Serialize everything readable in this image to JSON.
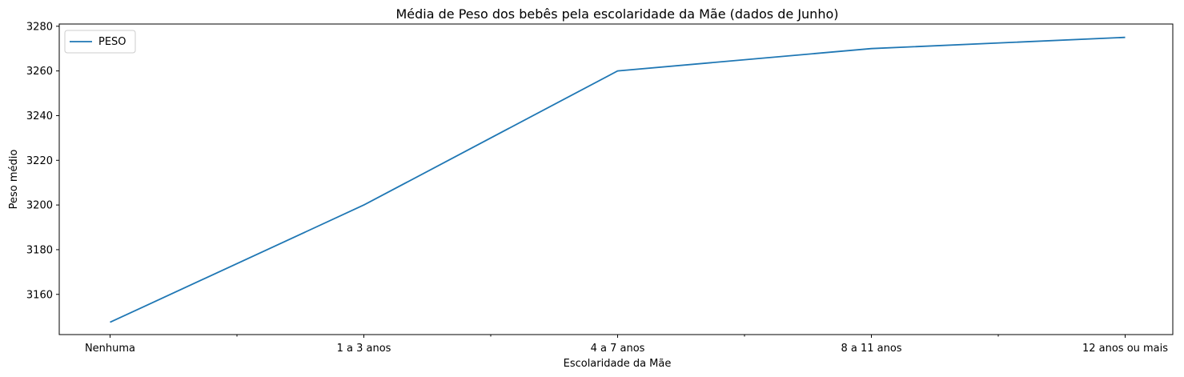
{
  "chart_data": {
    "type": "line",
    "title": "Média de Peso dos bebês pela escolaridade da Mãe (dados de Junho)",
    "xlabel": "Escolaridade da Mãe",
    "ylabel": "Peso médio",
    "categories": [
      "Nenhuma",
      "1 a 3 anos",
      "4 a 7 anos",
      "8 a 11 anos",
      "12 anos ou mais"
    ],
    "series": [
      {
        "name": "PESO",
        "values": [
          3147.5,
          3200,
          3260,
          3270,
          3275
        ],
        "color": "#1f77b4"
      }
    ],
    "yticks": [
      3160,
      3180,
      3200,
      3220,
      3240,
      3260,
      3280
    ],
    "ylim": [
      3142,
      3281
    ],
    "grid": false,
    "legend_position": "top-left"
  }
}
